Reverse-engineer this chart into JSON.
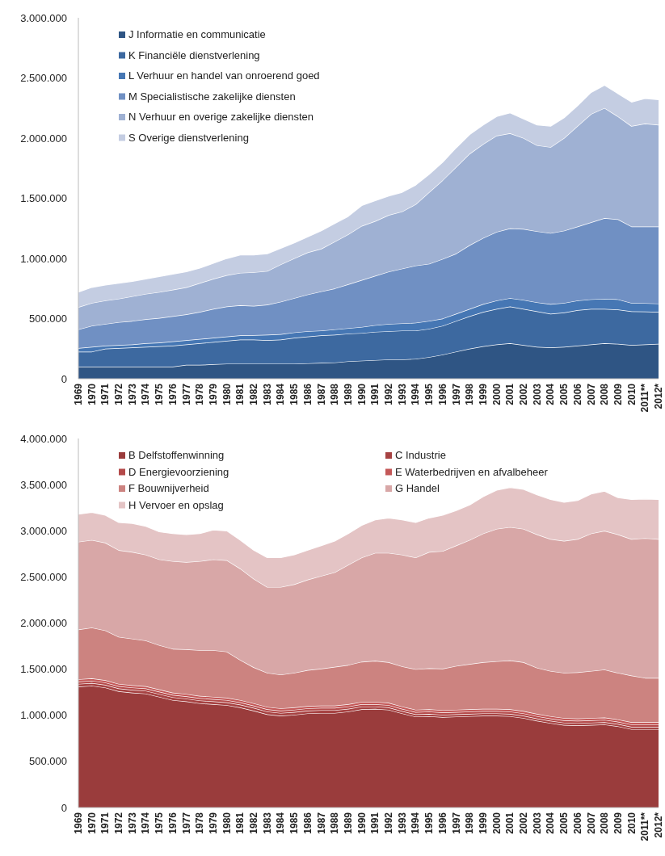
{
  "chart_data": [
    {
      "type": "area",
      "stacked": true,
      "legend": "top left",
      "categories": [
        "1969",
        "1970",
        "1971",
        "1972",
        "1973",
        "1974",
        "1975",
        "1976",
        "1977",
        "1978",
        "1979",
        "1980",
        "1981",
        "1982",
        "1983",
        "1984",
        "1985",
        "1986",
        "1987",
        "1988",
        "1989",
        "1990",
        "1991",
        "1992",
        "1993",
        "1994",
        "1995",
        "1996",
        "1997",
        "1998",
        "1999",
        "2000",
        "2001",
        "2002",
        "2003",
        "2004",
        "2005",
        "2006",
        "2007",
        "2008",
        "2009",
        "2010",
        "2011**",
        "2012*"
      ],
      "ylim": [
        0,
        3000000
      ],
      "yticks": [
        0,
        {
          "value": 500000,
          "label": "500.000"
        },
        {
          "value": 1000000,
          "label": "1.000.000"
        },
        {
          "value": 1500000,
          "label": "1.500.000"
        },
        {
          "value": 2000000,
          "label": "2.000.000"
        },
        {
          "value": 2500000,
          "label": "2.500.000"
        },
        {
          "value": 3000000,
          "label": "3.000.000"
        }
      ],
      "series": [
        {
          "name": "J Informatie en communicatie",
          "color": "#2f5584",
          "values": [
            100000,
            100000,
            100000,
            100000,
            100000,
            100000,
            100000,
            100000,
            115000,
            115000,
            120000,
            125000,
            125000,
            125000,
            125000,
            125000,
            125000,
            128000,
            132000,
            135000,
            145000,
            150000,
            155000,
            160000,
            160000,
            165000,
            180000,
            200000,
            225000,
            250000,
            270000,
            285000,
            295000,
            280000,
            265000,
            260000,
            265000,
            275000,
            285000,
            295000,
            290000,
            280000,
            285000,
            290000
          ]
        },
        {
          "name": "K Financiële dienstverlening",
          "color": "#3d69a0",
          "values": [
            125000,
            125000,
            150000,
            155000,
            160000,
            165000,
            170000,
            175000,
            170000,
            180000,
            185000,
            190000,
            200000,
            200000,
            195000,
            200000,
            215000,
            222000,
            228000,
            230000,
            230000,
            230000,
            235000,
            235000,
            240000,
            235000,
            235000,
            240000,
            255000,
            270000,
            285000,
            295000,
            305000,
            300000,
            295000,
            280000,
            285000,
            295000,
            295000,
            285000,
            285000,
            280000,
            273000,
            265000
          ]
        },
        {
          "name": "L Verhuur en handel van onroerend goed",
          "color": "#4677b4",
          "values": [
            30000,
            40000,
            25000,
            25000,
            25000,
            30000,
            30000,
            35000,
            35000,
            35000,
            35000,
            35000,
            35000,
            37000,
            45000,
            45000,
            45000,
            45000,
            40000,
            45000,
            45000,
            50000,
            55000,
            60000,
            60000,
            65000,
            65000,
            60000,
            60000,
            60000,
            65000,
            70000,
            70000,
            75000,
            75000,
            80000,
            80000,
            80000,
            80000,
            85000,
            85000,
            70000,
            70000,
            70000
          ]
        },
        {
          "name": "M Specialistische zakelijke diensten",
          "color": "#7090c3",
          "values": [
            155000,
            175000,
            180000,
            190000,
            195000,
            200000,
            205000,
            210000,
            215000,
            225000,
            240000,
            250000,
            250000,
            243000,
            250000,
            270000,
            285000,
            305000,
            325000,
            340000,
            365000,
            390000,
            410000,
            435000,
            455000,
            475000,
            475000,
            495000,
            500000,
            530000,
            550000,
            570000,
            580000,
            590000,
            590000,
            590000,
            600000,
            615000,
            640000,
            670000,
            665000,
            635000,
            637000,
            640000
          ]
        },
        {
          "name": "N Verhuur en overige zakelijke diensten",
          "color": "#9fb1d3",
          "values": [
            185000,
            190000,
            195000,
            195000,
            205000,
            210000,
            215000,
            220000,
            225000,
            240000,
            250000,
            260000,
            270000,
            280000,
            280000,
            310000,
            330000,
            350000,
            355000,
            390000,
            415000,
            450000,
            455000,
            470000,
            475000,
            510000,
            595000,
            655000,
            720000,
            760000,
            780000,
            800000,
            790000,
            755000,
            715000,
            715000,
            770000,
            835000,
            900000,
            915000,
            855000,
            835000,
            855000,
            845000
          ]
        },
        {
          "name": "S Overige dienstverlening",
          "color": "#c4cde2",
          "values": [
            125000,
            130000,
            130000,
            130000,
            125000,
            125000,
            130000,
            130000,
            130000,
            125000,
            130000,
            140000,
            150000,
            145000,
            145000,
            135000,
            130000,
            130000,
            150000,
            150000,
            150000,
            170000,
            170000,
            160000,
            160000,
            160000,
            150000,
            150000,
            160000,
            160000,
            160000,
            160000,
            170000,
            160000,
            170000,
            175000,
            170000,
            170000,
            180000,
            190000,
            190000,
            200000,
            210000,
            210000
          ]
        }
      ]
    },
    {
      "type": "area",
      "stacked": true,
      "legend": "top left",
      "categories": [
        "1969",
        "1970",
        "1971",
        "1972",
        "1973",
        "1974",
        "1975",
        "1976",
        "1977",
        "1978",
        "1979",
        "1980",
        "1981",
        "1982",
        "1983",
        "1984",
        "1985",
        "1986",
        "1987",
        "1988",
        "1989",
        "1990",
        "1991",
        "1992",
        "1993",
        "1994",
        "1995",
        "1996",
        "1997",
        "1998",
        "1999",
        "2000",
        "2001",
        "2002",
        "2003",
        "2004",
        "2005",
        "2006",
        "2007",
        "2008",
        "2009",
        "2010",
        "2011**",
        "2012*"
      ],
      "ylim": [
        0,
        4000000
      ],
      "yticks": [
        0,
        {
          "value": 500000,
          "label": "500.000"
        },
        {
          "value": 1000000,
          "label": "1.000.000"
        },
        {
          "value": 1500000,
          "label": "1.500.000"
        },
        {
          "value": 2000000,
          "label": "2.000.000"
        },
        {
          "value": 2500000,
          "label": "2.500.000"
        },
        {
          "value": 3000000,
          "label": "3.000.000"
        },
        {
          "value": 3500000,
          "label": "3.500.000"
        },
        {
          "value": 4000000,
          "label": "4.000.000"
        }
      ],
      "series": [
        {
          "name": "B Delfstoffenwinning",
          "color": "#9a3c3c",
          "values": [
            1310000,
            1320000,
            1300000,
            1260000,
            1245000,
            1235000,
            1200000,
            1165000,
            1150000,
            1130000,
            1120000,
            1110000,
            1085000,
            1050000,
            1010000,
            995000,
            1005000,
            1020000,
            1025000,
            1025000,
            1040000,
            1065000,
            1070000,
            1060000,
            1020000,
            985000,
            990000,
            980000,
            985000,
            990000,
            995000,
            995000,
            990000,
            970000,
            940000,
            915000,
            895000,
            890000,
            895000,
            900000,
            880000,
            850000,
            850000,
            850000
          ]
        },
        {
          "name": "C Industrie",
          "color": "#a64242",
          "values": [
            30000,
            30000,
            30000,
            30000,
            30000,
            30000,
            30000,
            30000,
            30000,
            30000,
            30000,
            30000,
            30000,
            30000,
            30000,
            30000,
            30000,
            30000,
            30000,
            30000,
            30000,
            30000,
            25000,
            25000,
            25000,
            25000,
            25000,
            25000,
            25000,
            25000,
            25000,
            25000,
            25000,
            25000,
            25000,
            25000,
            25000,
            25000,
            25000,
            25000,
            25000,
            25000,
            25000,
            25000
          ]
        },
        {
          "name": "D Energievoorziening",
          "color": "#b44a4a",
          "values": [
            25000,
            25000,
            25000,
            25000,
            25000,
            25000,
            25000,
            25000,
            25000,
            25000,
            25000,
            25000,
            25000,
            25000,
            25000,
            25000,
            25000,
            25000,
            25000,
            25000,
            25000,
            25000,
            25000,
            25000,
            25000,
            25000,
            25000,
            25000,
            25000,
            25000,
            25000,
            25000,
            25000,
            25000,
            25000,
            25000,
            25000,
            25000,
            25000,
            25000,
            25000,
            25000,
            25000,
            25000
          ]
        },
        {
          "name": "E Waterbedrijven en afvalbeheer",
          "color": "#c45858",
          "values": [
            25000,
            25000,
            25000,
            25000,
            25000,
            25000,
            25000,
            25000,
            25000,
            25000,
            25000,
            25000,
            25000,
            25000,
            25000,
            25000,
            25000,
            25000,
            25000,
            25000,
            25000,
            25000,
            25000,
            25000,
            25000,
            25000,
            25000,
            25000,
            25000,
            25000,
            25000,
            25000,
            25000,
            25000,
            25000,
            25000,
            25000,
            25000,
            25000,
            25000,
            25000,
            25000,
            25000,
            25000
          ]
        },
        {
          "name": "F Bouwnijverheid",
          "color": "#cc8380",
          "values": [
            540000,
            550000,
            540000,
            510000,
            505000,
            495000,
            480000,
            475000,
            485000,
            495000,
            505000,
            500000,
            435000,
            390000,
            370000,
            365000,
            375000,
            390000,
            400000,
            420000,
            425000,
            435000,
            445000,
            440000,
            435000,
            440000,
            445000,
            450000,
            475000,
            490000,
            505000,
            515000,
            530000,
            530000,
            500000,
            490000,
            490000,
            500000,
            510000,
            520000,
            505000,
            505000,
            480000,
            480000
          ]
        },
        {
          "name": "G Handel",
          "color": "#d8a7a7",
          "values": [
            950000,
            950000,
            950000,
            940000,
            940000,
            930000,
            930000,
            950000,
            945000,
            965000,
            985000,
            990000,
            990000,
            960000,
            930000,
            950000,
            960000,
            980000,
            1005000,
            1025000,
            1085000,
            1130000,
            1170000,
            1185000,
            1210000,
            1210000,
            1260000,
            1275000,
            1305000,
            1345000,
            1395000,
            1435000,
            1445000,
            1445000,
            1445000,
            1430000,
            1430000,
            1445000,
            1490000,
            1505000,
            1500000,
            1480000,
            1515000,
            1505000
          ]
        },
        {
          "name": "H Vervoer en opslag",
          "color": "#e4c4c5",
          "values": [
            300000,
            300000,
            300000,
            300000,
            310000,
            310000,
            300000,
            300000,
            300000,
            300000,
            320000,
            320000,
            310000,
            310000,
            320000,
            320000,
            320000,
            320000,
            330000,
            340000,
            340000,
            350000,
            360000,
            380000,
            380000,
            380000,
            370000,
            390000,
            380000,
            380000,
            400000,
            420000,
            430000,
            430000,
            430000,
            430000,
            420000,
            420000,
            430000,
            430000,
            400000,
            430000,
            425000,
            430000
          ]
        }
      ]
    }
  ]
}
